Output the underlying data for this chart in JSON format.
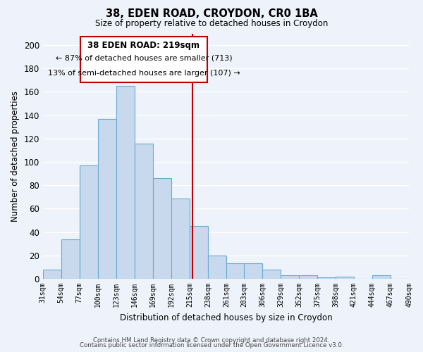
{
  "title": "38, EDEN ROAD, CROYDON, CR0 1BA",
  "subtitle": "Size of property relative to detached houses in Croydon",
  "xlabel": "Distribution of detached houses by size in Croydon",
  "ylabel": "Number of detached properties",
  "bar_values": [
    8,
    34,
    97,
    137,
    165,
    116,
    86,
    69,
    45,
    20,
    13,
    13,
    8,
    3,
    3,
    1,
    2,
    0,
    3,
    0
  ],
  "bin_labels": [
    "31sqm",
    "54sqm",
    "77sqm",
    "100sqm",
    "123sqm",
    "146sqm",
    "169sqm",
    "192sqm",
    "215sqm",
    "238sqm",
    "261sqm",
    "283sqm",
    "306sqm",
    "329sqm",
    "352sqm",
    "375sqm",
    "398sqm",
    "421sqm",
    "444sqm",
    "467sqm",
    "490sqm"
  ],
  "bar_color": "#c8d9ee",
  "bar_edge_color": "#6aaad4",
  "vline_color": "#c00000",
  "ylim": [
    0,
    210
  ],
  "yticks": [
    0,
    20,
    40,
    60,
    80,
    100,
    120,
    140,
    160,
    180,
    200
  ],
  "bin_edges": [
    31,
    54,
    77,
    100,
    123,
    146,
    169,
    192,
    215,
    238,
    261,
    283,
    306,
    329,
    352,
    375,
    398,
    421,
    444,
    467,
    490
  ],
  "vline_x": 219,
  "annotation_title": "38 EDEN ROAD: 219sqm",
  "annotation_line1": "← 87% of detached houses are smaller (713)",
  "annotation_line2": "13% of semi-detached houses are larger (107) →",
  "annotation_box_color": "#ffffff",
  "annotation_box_edge": "#c00000",
  "footer1": "Contains HM Land Registry data © Crown copyright and database right 2024.",
  "footer2": "Contains public sector information licensed under the Open Government Licence v3.0.",
  "background_color": "#eef2fa",
  "grid_color": "#ffffff"
}
